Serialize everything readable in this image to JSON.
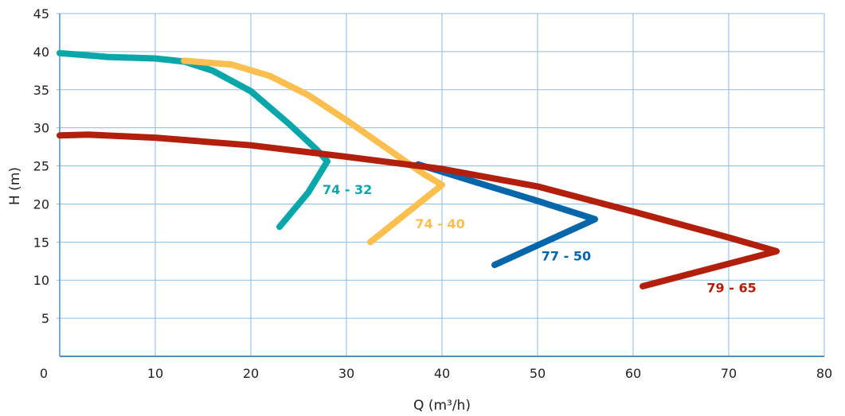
{
  "chart_data": {
    "type": "line",
    "title": "",
    "xlabel": "Q (m³/h)",
    "ylabel": "H (m)",
    "xlim": [
      0,
      80
    ],
    "ylim": [
      0,
      45
    ],
    "xticks": [
      0,
      10,
      20,
      30,
      40,
      50,
      60,
      70,
      80
    ],
    "yticks": [
      5,
      10,
      15,
      20,
      25,
      30,
      35,
      40,
      45
    ],
    "grid": true,
    "series": [
      {
        "name": "74 - 32",
        "color": "#0aa7aa",
        "label_at": [
          27.5,
          21.3
        ],
        "x": [
          0,
          5,
          10,
          13,
          16,
          20,
          24,
          27,
          28,
          26,
          23
        ],
        "y": [
          39.8,
          39.3,
          39.1,
          38.7,
          37.5,
          34.8,
          30.5,
          27,
          25.6,
          21.5,
          17
        ]
      },
      {
        "name": "74 - 40",
        "color": "#fbbf4f",
        "label_at": [
          37.2,
          16.8
        ],
        "x": [
          13,
          18,
          22,
          26,
          30,
          34,
          38,
          40,
          36,
          32.5
        ],
        "y": [
          38.8,
          38.3,
          36.8,
          34.3,
          31,
          27.5,
          24,
          22.5,
          18.5,
          15
        ]
      },
      {
        "name": "77 - 50",
        "color": "#0566a9",
        "label_at": [
          50.4,
          12.6
        ],
        "x": [
          37.5,
          45,
          50,
          56,
          45.5
        ],
        "y": [
          25.2,
          22.3,
          20.4,
          18,
          12
        ]
      },
      {
        "name": "79 - 65",
        "color": "#b21f0c",
        "label_at": [
          67.7,
          8.4
        ],
        "x": [
          0,
          3,
          10,
          20,
          30,
          40,
          50,
          60,
          70,
          75,
          61
        ],
        "y": [
          29,
          29.1,
          28.7,
          27.7,
          26.2,
          24.6,
          22.3,
          19,
          15.6,
          13.8,
          9.2
        ]
      }
    ]
  }
}
